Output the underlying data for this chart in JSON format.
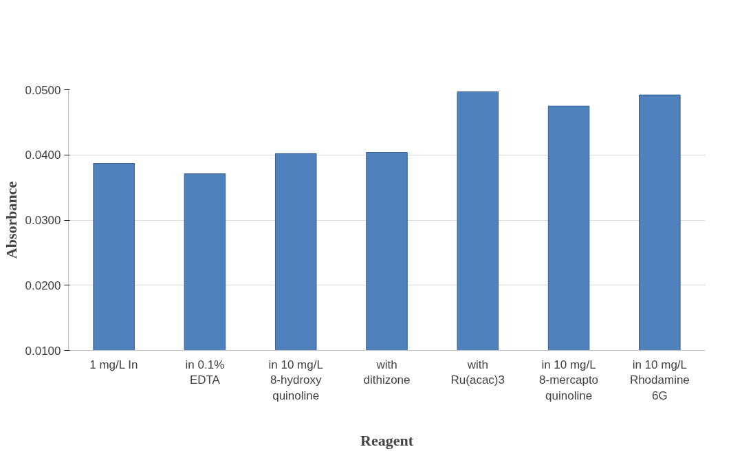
{
  "chart_data": {
    "type": "bar",
    "xlabel": "Reagent",
    "ylabel": "Absorbance",
    "categories": [
      "1 mg/L In",
      "in 0.1%\nEDTA",
      "in 10 mg/L\n8-hydroxy\nquinoline",
      "with\ndithizone",
      "with\nRu(acac)3",
      "in 10 mg/L\n8-mercapto\nquinoline",
      "in 10 mg/L\nRhodamine\n6G"
    ],
    "values": [
      0.0387,
      0.0371,
      0.0402,
      0.0404,
      0.0497,
      0.0475,
      0.0492
    ],
    "color": "#4f81bd",
    "ylim": [
      0.01,
      0.05
    ],
    "yticks": [
      {
        "value": 0.01,
        "label": "0.0100"
      },
      {
        "value": 0.02,
        "label": "0.0200"
      },
      {
        "value": 0.03,
        "label": "0.0300"
      },
      {
        "value": 0.04,
        "label": "0.0400"
      },
      {
        "value": 0.05,
        "label": "0.0500"
      }
    ],
    "grid": "y"
  }
}
